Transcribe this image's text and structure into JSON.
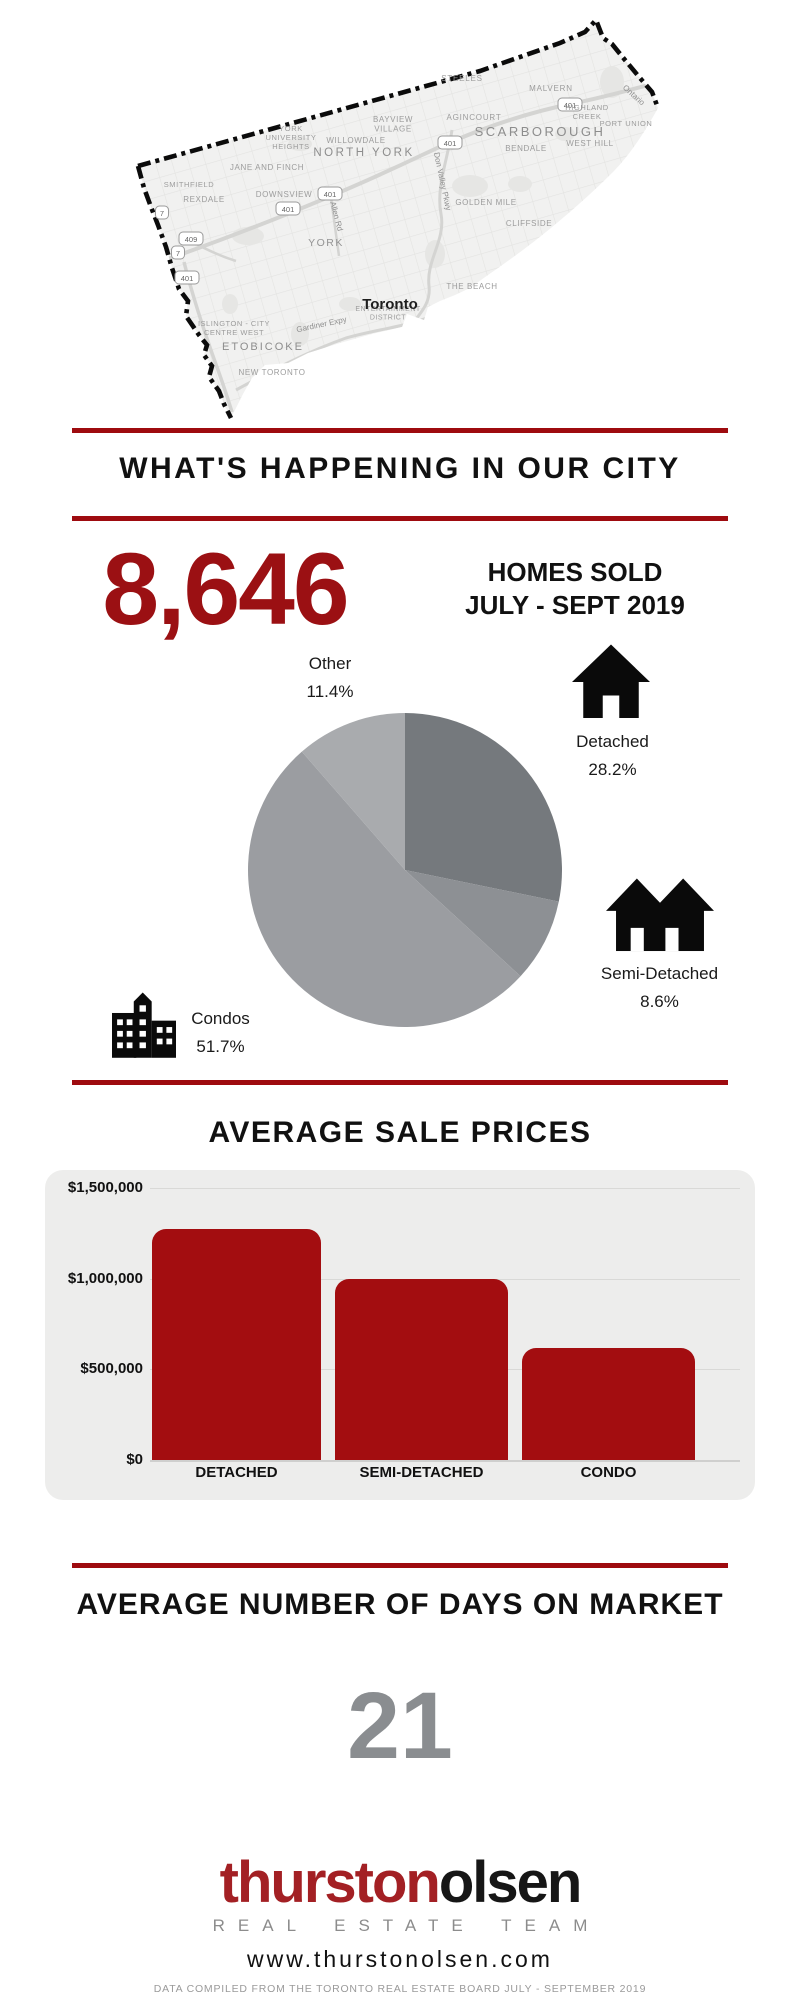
{
  "sections": {
    "city_title": "WHAT'S HAPPENING IN OUR CITY",
    "prices_title": "AVERAGE SALE PRICES",
    "days_title": "AVERAGE NUMBER OF DAYS ON MARKET"
  },
  "homes_sold": {
    "value": "8,646",
    "label_line1": "HOMES SOLD",
    "label_line2": "JULY - SEPT 2019"
  },
  "days_on_market": {
    "value": "21"
  },
  "chart_data": [
    {
      "type": "pie",
      "title": "HOMES SOLD JULY - SEPT 2019",
      "total_label": "8,646",
      "start_angle_deg": 0,
      "direction": "clockwise",
      "legend_position": "around",
      "slices": [
        {
          "label": "Detached",
          "value": 28.2,
          "color": "#75797d"
        },
        {
          "label": "Semi-Detached",
          "value": 8.6,
          "color": "#8d9094"
        },
        {
          "label": "Condos",
          "value": 51.7,
          "color": "#9b9da1"
        },
        {
          "label": "Other",
          "value": 11.4,
          "color": "#a9abae"
        }
      ]
    },
    {
      "type": "bar",
      "title": "AVERAGE SALE PRICES",
      "categories": [
        "DETACHED",
        "SEMI-DETACHED",
        "CONDO"
      ],
      "values": [
        1275000,
        1000000,
        620000
      ],
      "bar_color": "#a30d10",
      "xlabel": "",
      "ylabel": "",
      "ylim": [
        0,
        1500000
      ],
      "grid": true,
      "yticks": [
        {
          "label": "$1,500,000",
          "value": 1500000
        },
        {
          "label": "$1,000,000",
          "value": 1000000
        },
        {
          "label": "$500,000",
          "value": 500000
        },
        {
          "label": "$0",
          "value": 0
        }
      ]
    }
  ],
  "map": {
    "city_label": "Toronto",
    "area_labels": [
      "STEELES",
      "MALVERN",
      "AGINCOURT",
      "SCARBOROUGH",
      "HIGHLAND|CREEK",
      "PORT UNION",
      "WEST HILL",
      "BENDALE",
      "GOLDEN MILE",
      "CLIFFSIDE",
      "BAYVIEW|VILLAGE",
      "WILLOWDALE",
      "NORTH YORK",
      "YORK|UNIVERSITY|HEIGHTS",
      "JANE AND FINCH",
      "SMITHFIELD",
      "REXDALE",
      "DOWNSVIEW",
      "YORK",
      "THE BEACH",
      "ENTERTAINMENT|DISTRICT",
      "ISLINGTON - CITY|CENTRE WEST",
      "ETOBICOKE",
      "NEW TORONTO"
    ],
    "road_labels": [
      "Don Valley Pkwy",
      "Allen Rd",
      "Gardiner Expy",
      "Ontario"
    ],
    "highway_badges": [
      "401",
      "401",
      "401",
      "401",
      "409",
      "7",
      "7",
      "401"
    ]
  },
  "footer": {
    "brand_first": "thurston",
    "brand_second": "olsen",
    "brand_sub": "REAL ESTATE TEAM",
    "website": "www.thurstonolsen.com",
    "disclaimer": "DATA COMPILED FROM THE TORONTO REAL ESTATE BOARD JULY - SEPTEMBER 2019"
  },
  "colors": {
    "accent_red": "#9e0b0f",
    "number_red": "#9b1013",
    "logo_red": "#a32024",
    "days_gray": "#8a8d90"
  }
}
